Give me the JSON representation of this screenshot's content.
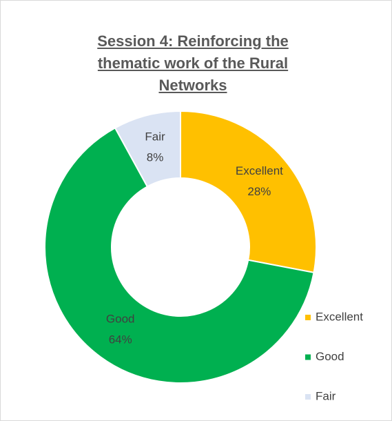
{
  "chart_data": {
    "type": "donut",
    "title": "Session 4: Reinforcing the thematic work of the Rural Networks",
    "categories": [
      "Excellent",
      "Good",
      "Fair"
    ],
    "values": [
      28,
      64,
      8
    ],
    "value_labels": [
      "28%",
      "64%",
      "8%"
    ],
    "colors": [
      "#FFC000",
      "#00B050",
      "#DAE3F3"
    ],
    "legend": "right"
  }
}
